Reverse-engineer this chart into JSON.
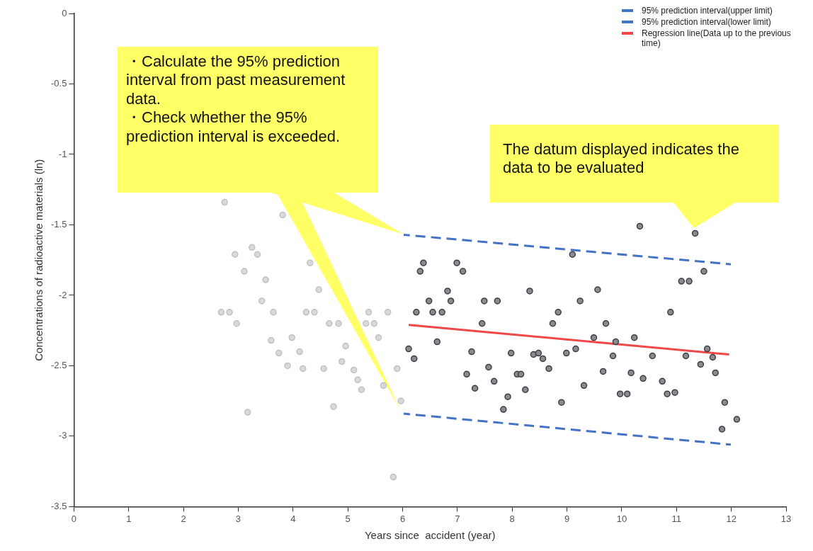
{
  "chart_data": {
    "type": "scatter",
    "xlabel": "Years since  accident (year)",
    "ylabel": "Concentrations of radioactive materials (ln)",
    "xlim": [
      0,
      13
    ],
    "xticks": [
      0,
      1,
      2,
      3,
      4,
      5,
      6,
      7,
      8,
      9,
      10,
      11,
      12,
      13
    ],
    "ylim": [
      -3.5,
      0
    ],
    "yticks": [
      0,
      -0.5,
      -1,
      -1.5,
      -2,
      -2.5,
      -3,
      -3.5
    ],
    "grid": false,
    "legend": "top right",
    "annotations": [
      "・Calculate the 95% prediction interval from past measurement data.",
      "・Check whether the 95% prediction interval is exceeded.",
      "The datum displayed indicates the data to be evaluated"
    ],
    "series": [
      {
        "type": "scatter",
        "marker": "circle",
        "color": "#c0c0c0",
        "x": [
          2.75,
          3.81,
          3.25,
          2.94,
          3.35,
          4.31,
          3.11,
          3.5,
          4.47,
          3.43,
          2.69,
          2.84,
          3.64,
          4.24,
          4.39,
          5.38,
          5.73,
          2.97,
          4.66,
          4.83,
          5.33,
          5.48,
          5.56,
          3.6,
          3.98,
          4.96,
          3.74,
          4.12,
          4.89,
          3.9,
          4.18,
          4.56,
          5.11,
          5.9,
          5.18,
          5.25,
          5.65,
          5.97,
          4.74,
          3.17,
          5.83
        ],
        "values": [
          -1.34,
          -1.43,
          -1.66,
          -1.71,
          -1.71,
          -1.77,
          -1.83,
          -1.89,
          -1.96,
          -2.04,
          -2.12,
          -2.12,
          -2.12,
          -2.12,
          -2.12,
          -2.12,
          -2.12,
          -2.2,
          -2.2,
          -2.2,
          -2.2,
          -2.2,
          -2.3,
          -2.32,
          -2.3,
          -2.36,
          -2.41,
          -2.4,
          -2.47,
          -2.5,
          -2.52,
          -2.52,
          -2.53,
          -2.52,
          -2.6,
          -2.67,
          -2.64,
          -2.75,
          -2.79,
          -2.83,
          -3.29
        ]
      },
      {
        "type": "scatter",
        "marker": "circle",
        "color": "#3a3d44",
        "x": [
          9.1,
          6.38,
          6.99,
          6.32,
          7.1,
          6.82,
          8.32,
          6.48,
          6.88,
          7.49,
          7.73,
          6.25,
          6.55,
          6.72,
          8.84,
          7.45,
          8.74,
          6.63,
          6.11,
          6.21,
          7.26,
          7.98,
          8.39,
          8.48,
          8.56,
          8.99,
          9.16,
          7.57,
          7.17,
          8.09,
          8.16,
          8.67,
          7.67,
          7.32,
          8.24,
          7.92,
          8.9,
          7.84,
          10.33,
          11.34,
          11.5,
          11.09,
          11.23,
          9.56,
          9.24,
          10.89,
          9.71,
          9.49,
          9.89,
          10.23,
          11.56,
          9.84,
          10.56,
          11.17,
          11.66,
          11.44,
          9.66,
          10.17,
          11.71,
          10.39,
          9.31,
          10.74,
          9.97,
          10.1,
          10.83,
          10.97,
          11.88,
          12.1,
          11.83
        ],
        "values": [
          -1.71,
          -1.77,
          -1.77,
          -1.83,
          -1.83,
          -1.97,
          -1.97,
          -2.04,
          -2.04,
          -2.04,
          -2.04,
          -2.12,
          -2.12,
          -2.12,
          -2.12,
          -2.2,
          -2.2,
          -2.33,
          -2.38,
          -2.45,
          -2.4,
          -2.41,
          -2.42,
          -2.41,
          -2.45,
          -2.41,
          -2.38,
          -2.51,
          -2.56,
          -2.56,
          -2.56,
          -2.52,
          -2.61,
          -2.66,
          -2.67,
          -2.72,
          -2.76,
          -2.81,
          -1.51,
          -1.56,
          -1.83,
          -1.9,
          -1.9,
          -1.96,
          -2.04,
          -2.12,
          -2.2,
          -2.3,
          -2.33,
          -2.3,
          -2.38,
          -2.43,
          -2.43,
          -2.43,
          -2.44,
          -2.49,
          -2.54,
          -2.55,
          -2.55,
          -2.59,
          -2.64,
          -2.61,
          -2.7,
          -2.7,
          -2.7,
          -2.69,
          -2.76,
          -2.88,
          -2.95
        ]
      },
      {
        "type": "line",
        "name": "95% prediction interval(upper limit)",
        "color": "#4472c4",
        "line_style": "dashed",
        "x": [
          6.02,
          11.99
        ],
        "values": [
          -1.57,
          -1.78
        ]
      },
      {
        "type": "line",
        "name": "95% prediction interval(lower limit)",
        "color": "#4472c4",
        "line_style": "dashed",
        "x": [
          6.02,
          11.99
        ],
        "values": [
          -2.84,
          -3.06
        ]
      },
      {
        "type": "line",
        "name": "Regression line(Data up to the previous time)",
        "color": "#f04848",
        "line_style": "solid",
        "x": [
          6.11,
          11.96
        ],
        "values": [
          -2.21,
          -2.42
        ]
      }
    ]
  }
}
